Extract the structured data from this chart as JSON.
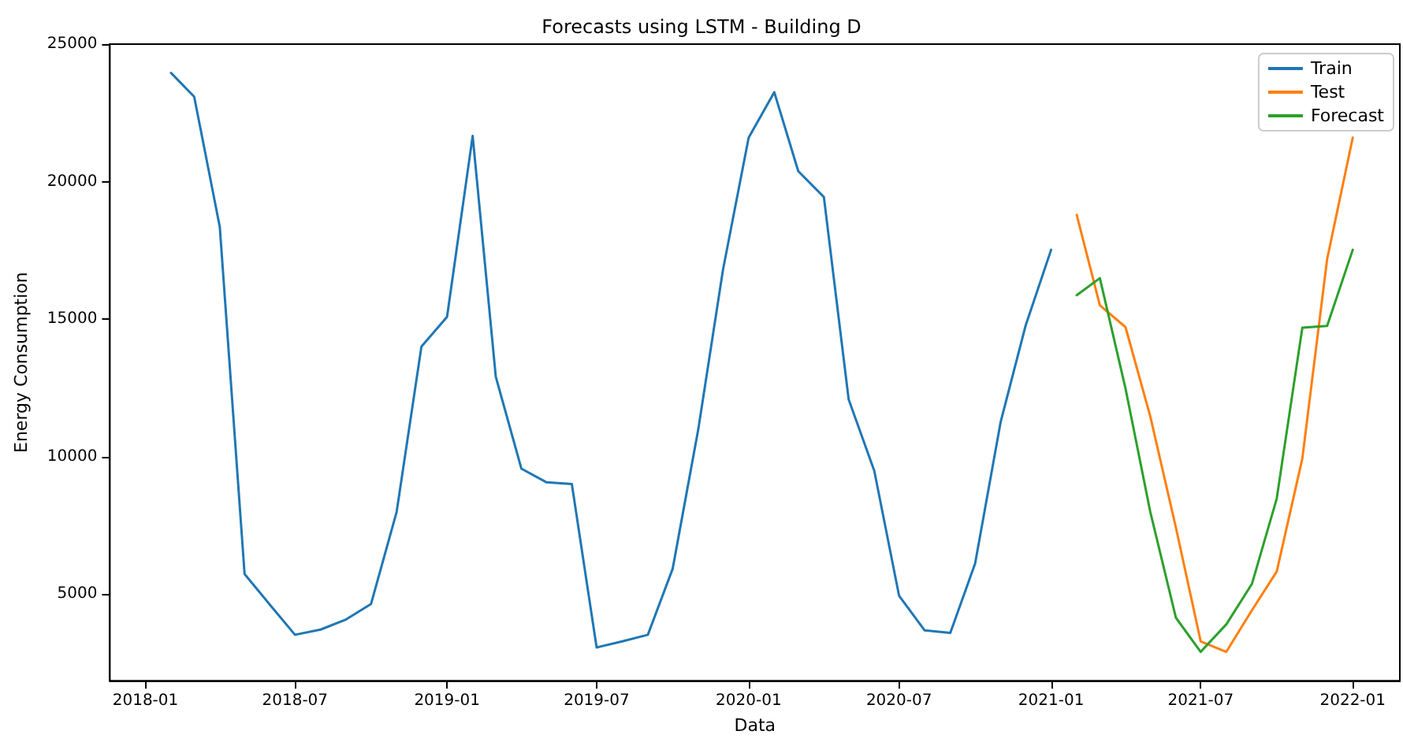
{
  "chart_data": {
    "type": "line",
    "title": "Forecasts using LSTM - Building D",
    "xlabel": "Data",
    "ylabel": "Energy Consumption",
    "series": [
      {
        "name": "Train",
        "color": "#1f77b4",
        "x": [
          "2018-02",
          "2018-03",
          "2018-04",
          "2018-05",
          "2018-06",
          "2018-07",
          "2018-08",
          "2018-09",
          "2018-10",
          "2018-11",
          "2018-12",
          "2019-01",
          "2019-02",
          "2019-03",
          "2019-04",
          "2019-05",
          "2019-06",
          "2019-07",
          "2019-08",
          "2019-09",
          "2019-10",
          "2019-11",
          "2019-12",
          "2020-01",
          "2020-02",
          "2020-03",
          "2020-04",
          "2020-05",
          "2020-06",
          "2020-07",
          "2020-08",
          "2020-09",
          "2020-10",
          "2020-11",
          "2020-12",
          "2021-01"
        ],
        "values": [
          23950,
          23090,
          18350,
          5730,
          4600,
          3520,
          3710,
          4080,
          4640,
          7990,
          14000,
          15080,
          21660,
          12900,
          9560,
          9070,
          9000,
          3060,
          3280,
          3520,
          5920,
          10990,
          16810,
          21600,
          23250,
          20380,
          19440,
          12080,
          9480,
          4940,
          3680,
          3590,
          6110,
          11270,
          14750,
          17520
        ]
      },
      {
        "name": "Test",
        "color": "#ff7f0e",
        "x": [
          "2021-02",
          "2021-03",
          "2021-04",
          "2021-05",
          "2021-06",
          "2021-07",
          "2021-08",
          "2021-09",
          "2021-10",
          "2021-11",
          "2021-12",
          "2022-01"
        ],
        "values": [
          18790,
          15500,
          14710,
          11460,
          7420,
          3280,
          2900,
          4410,
          5820,
          9930,
          17180,
          21600
        ]
      },
      {
        "name": "Forecast",
        "color": "#2ca02c",
        "x": [
          "2021-02",
          "2021-03",
          "2021-04",
          "2021-05",
          "2021-06",
          "2021-07",
          "2021-08",
          "2021-09",
          "2021-10",
          "2021-11",
          "2021-12",
          "2022-01"
        ],
        "values": [
          15870,
          16490,
          12480,
          7990,
          4140,
          2900,
          3900,
          5370,
          8470,
          14690,
          14750,
          17520
        ]
      }
    ],
    "xlim": [
      "2017-11-19",
      "2022-02-27"
    ],
    "xticks": [
      "2018-01",
      "2018-07",
      "2019-01",
      "2019-07",
      "2020-01",
      "2020-07",
      "2021-01",
      "2021-07",
      "2022-01"
    ],
    "ylim": [
      1850,
      25000
    ],
    "yticks": [
      5000,
      10000,
      15000,
      20000,
      25000
    ],
    "grid": false,
    "legend": "top right",
    "marker": "none",
    "line_style": "solid"
  }
}
